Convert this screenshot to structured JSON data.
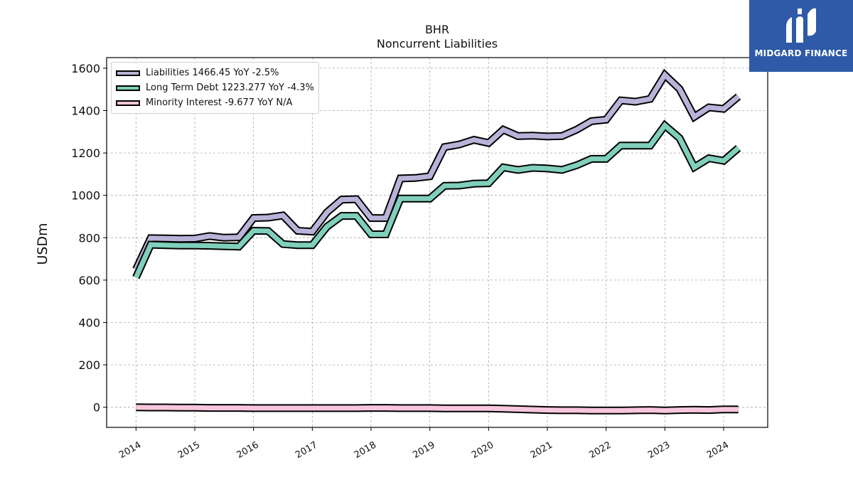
{
  "chart_data": {
    "type": "line",
    "title": "BHR",
    "subtitle": "Noncurrent  Liabilities",
    "ylabel": "USDm",
    "xlabel": "",
    "ylim": [
      -95,
      1650
    ],
    "xlim": [
      2013.5,
      2024.75
    ],
    "yticks": [
      0,
      200,
      400,
      600,
      800,
      1000,
      1200,
      1400,
      1600
    ],
    "xticks": [
      "2014",
      "2015",
      "2016",
      "2017",
      "2018",
      "2019",
      "2020",
      "2021",
      "2022",
      "2023",
      "2024"
    ],
    "grid": true,
    "legend_position": "top-left",
    "x": [
      "2014-01",
      "2014-04",
      "2014-07",
      "2014-10",
      "2015-01",
      "2015-04",
      "2015-07",
      "2015-10",
      "2016-01",
      "2016-04",
      "2016-07",
      "2016-10",
      "2017-01",
      "2017-04",
      "2017-07",
      "2017-10",
      "2018-01",
      "2018-04",
      "2018-07",
      "2018-10",
      "2019-01",
      "2019-04",
      "2019-07",
      "2019-10",
      "2020-01",
      "2020-04",
      "2020-07",
      "2020-10",
      "2021-01",
      "2021-04",
      "2021-07",
      "2021-10",
      "2022-01",
      "2022-04",
      "2022-07",
      "2022-10",
      "2023-01",
      "2023-04",
      "2023-07",
      "2023-10",
      "2024-01",
      "2024-04"
    ],
    "series": [
      {
        "name": "Liabilities",
        "legend": "Liabilities  1466.45 YoY -2.5%",
        "color": "#b9b3d9",
        "values": [
          650,
          798,
          797,
          795,
          796,
          808,
          800,
          802,
          893,
          895,
          905,
          833,
          829,
          920,
          980,
          982,
          893,
          893,
          1080,
          1082,
          1090,
          1228,
          1240,
          1262,
          1247,
          1310,
          1280,
          1282,
          1278,
          1280,
          1310,
          1350,
          1357,
          1448,
          1442,
          1455,
          1568,
          1502,
          1370,
          1415,
          1408,
          1466
        ]
      },
      {
        "name": "Long Term Debt",
        "legend": "Long Term Debt  1223.277 YoY -4.3%",
        "color": "#7fcfbb",
        "values": [
          612,
          767,
          765,
          763,
          763,
          762,
          760,
          758,
          833,
          832,
          770,
          765,
          765,
          852,
          903,
          903,
          816,
          816,
          985,
          985,
          985,
          1045,
          1046,
          1055,
          1057,
          1132,
          1120,
          1130,
          1127,
          1120,
          1142,
          1172,
          1172,
          1235,
          1235,
          1235,
          1330,
          1270,
          1133,
          1175,
          1163,
          1223
        ]
      },
      {
        "name": "Minority Interest",
        "legend": "Minority Interest  -9.677 YoY N/A",
        "color": "#f7c6dc",
        "values": [
          0,
          -1,
          -1,
          -2,
          -2,
          -3,
          -3,
          -3,
          -4,
          -4,
          -4,
          -4,
          -4,
          -4,
          -4,
          -4,
          -3,
          -3,
          -4,
          -4,
          -4,
          -5,
          -5,
          -5,
          -5,
          -7,
          -9,
          -11,
          -13,
          -14,
          -14,
          -15,
          -15,
          -15,
          -14,
          -13,
          -15,
          -13,
          -12,
          -13,
          -10,
          -10
        ]
      }
    ]
  },
  "logo": {
    "text": "MIDGARD FINANCE"
  }
}
